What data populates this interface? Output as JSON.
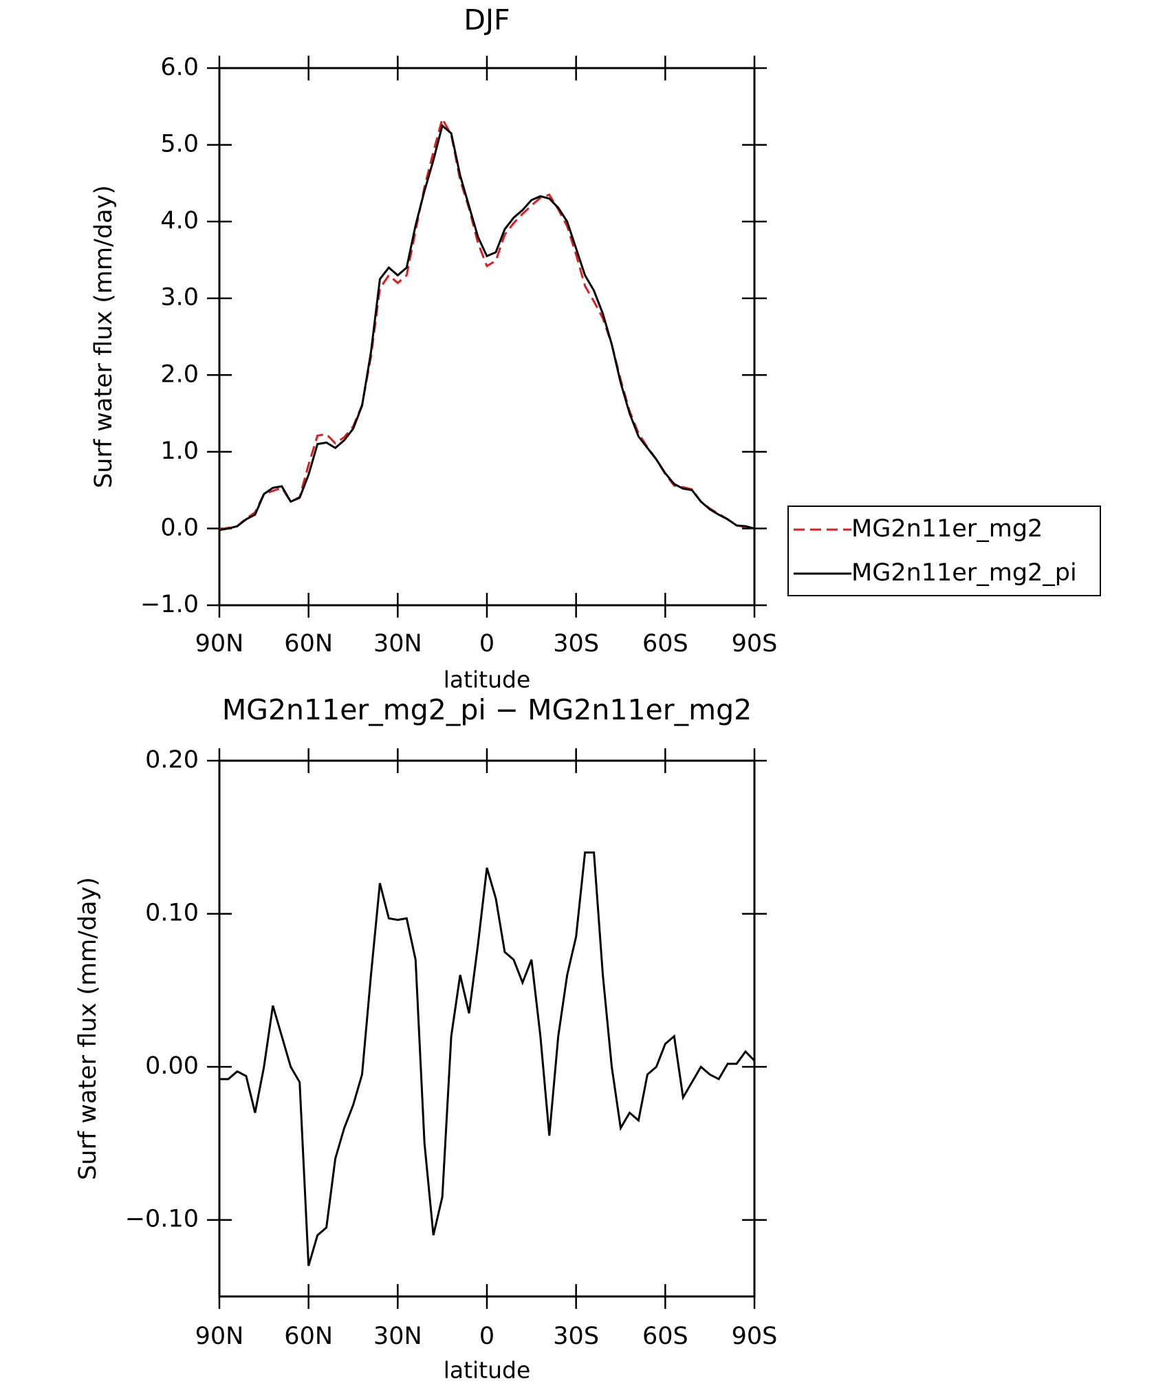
{
  "chart_data": [
    {
      "type": "line",
      "title": "DJF",
      "y_label": "Surf water flux (mm/day)",
      "x_label": "latitude",
      "x": [
        90,
        87,
        84,
        81,
        78,
        75,
        72,
        69,
        66,
        63,
        60,
        57,
        54,
        51,
        48,
        45,
        42,
        39,
        36,
        33,
        30,
        27,
        24,
        21,
        18,
        15,
        12,
        9,
        6,
        3,
        0,
        -3,
        -6,
        -9,
        -12,
        -15,
        -18,
        -21,
        -24,
        -27,
        -30,
        -33,
        -36,
        -39,
        -42,
        -45,
        -48,
        -51,
        -54,
        -57,
        -60,
        -63,
        -66,
        -69,
        -72,
        -75,
        -78,
        -81,
        -84,
        -87,
        -90
      ],
      "series": [
        {
          "name": "MG2n11er_mg2",
          "color": "#e41a1c",
          "dash": "dashed",
          "values": [
            -0.01,
            0.01,
            0.03,
            0.13,
            0.21,
            0.45,
            0.49,
            0.53,
            0.35,
            0.41,
            0.83,
            1.21,
            1.23,
            1.11,
            1.19,
            1.33,
            1.61,
            2.24,
            3.13,
            3.3,
            3.2,
            3.3,
            3.88,
            4.45,
            4.91,
            5.34,
            5.13,
            4.54,
            4.17,
            3.72,
            3.42,
            3.49,
            3.83,
            3.98,
            4.1,
            4.21,
            4.31,
            4.35,
            4.16,
            3.94,
            3.57,
            3.16,
            2.96,
            2.74,
            2.4,
            1.94,
            1.53,
            1.24,
            1.06,
            0.9,
            0.71,
            0.56,
            0.54,
            0.51,
            0.35,
            0.26,
            0.19,
            0.12,
            0.04,
            0.02,
            0.0
          ]
        },
        {
          "name": "MG2n11er_mg2_pi",
          "color": "#000000",
          "dash": "solid",
          "values": [
            -0.02,
            0.0,
            0.03,
            0.12,
            0.18,
            0.45,
            0.53,
            0.55,
            0.35,
            0.4,
            0.7,
            1.1,
            1.12,
            1.05,
            1.15,
            1.3,
            1.6,
            2.3,
            3.25,
            3.4,
            3.3,
            3.4,
            3.95,
            4.4,
            4.8,
            5.25,
            5.15,
            4.6,
            4.2,
            3.8,
            3.55,
            3.6,
            3.9,
            4.05,
            4.15,
            4.28,
            4.33,
            4.3,
            4.18,
            4.0,
            3.65,
            3.3,
            3.1,
            2.8,
            2.4,
            1.9,
            1.5,
            1.2,
            1.05,
            0.9,
            0.72,
            0.58,
            0.52,
            0.5,
            0.35,
            0.25,
            0.18,
            0.12,
            0.04,
            0.03,
            0.0
          ]
        }
      ],
      "xlim": [
        90,
        -90
      ],
      "xticks": [
        {
          "value": 90,
          "label": "90N"
        },
        {
          "value": 60,
          "label": "60N"
        },
        {
          "value": 30,
          "label": "30N"
        },
        0,
        {
          "value": -30,
          "label": "30S"
        },
        {
          "value": -60,
          "label": "60S"
        },
        {
          "value": -90,
          "label": "90S"
        }
      ],
      "ylim": [
        -1,
        6
      ],
      "yticks": [
        {
          "value": -1,
          "label": "−1.0"
        },
        {
          "value": 0,
          "label": "0.0"
        },
        {
          "value": 1,
          "label": "1.0"
        },
        {
          "value": 2,
          "label": "2.0"
        },
        {
          "value": 3,
          "label": "3.0"
        },
        {
          "value": 4,
          "label": "4.0"
        },
        {
          "value": 5,
          "label": "5.0"
        },
        {
          "value": 6,
          "label": "6.0"
        }
      ],
      "legend": "outside-right"
    },
    {
      "type": "line",
      "title": "MG2n11er_mg2_pi − MG2n11er_mg2",
      "y_label": "Surf water flux (mm/day)",
      "x_label": "latitude",
      "x": [
        90,
        87,
        84,
        81,
        78,
        75,
        72,
        69,
        66,
        63,
        60,
        57,
        54,
        51,
        48,
        45,
        42,
        39,
        36,
        33,
        30,
        27,
        24,
        21,
        18,
        15,
        12,
        9,
        6,
        3,
        0,
        -3,
        -6,
        -9,
        -12,
        -15,
        -18,
        -21,
        -24,
        -27,
        -30,
        -33,
        -36,
        -39,
        -42,
        -45,
        -48,
        -51,
        -54,
        -57,
        -60,
        -63,
        -66,
        -69,
        -72,
        -75,
        -78,
        -81,
        -84,
        -87,
        -90
      ],
      "series": [
        {
          "color": "#000000",
          "dash": "solid",
          "values": [
            -0.008,
            -0.008,
            -0.003,
            -0.006,
            -0.03,
            0.0,
            0.04,
            0.02,
            0.0,
            -0.01,
            -0.13,
            -0.11,
            -0.105,
            -0.06,
            -0.04,
            -0.025,
            -0.005,
            0.06,
            0.12,
            0.097,
            0.096,
            0.097,
            0.07,
            -0.05,
            -0.11,
            -0.085,
            0.02,
            0.06,
            0.035,
            0.08,
            0.13,
            0.11,
            0.075,
            0.07,
            0.055,
            0.07,
            0.02,
            -0.045,
            0.02,
            0.06,
            0.085,
            0.14,
            0.14,
            0.06,
            0.0,
            -0.04,
            -0.03,
            -0.035,
            -0.005,
            0.0,
            0.015,
            0.02,
            -0.02,
            -0.01,
            0.0,
            -0.005,
            -0.008,
            0.002,
            0.002,
            0.01,
            0.004
          ]
        }
      ],
      "xlim": [
        90,
        -90
      ],
      "xticks": [
        {
          "value": 90,
          "label": "90N"
        },
        {
          "value": 60,
          "label": "60N"
        },
        {
          "value": 30,
          "label": "30N"
        },
        0,
        {
          "value": -30,
          "label": "30S"
        },
        {
          "value": -60,
          "label": "60S"
        },
        {
          "value": -90,
          "label": "90S"
        }
      ],
      "ylim": [
        -0.15,
        0.2
      ],
      "yticks": [
        {
          "value": -0.1,
          "label": "−0.10"
        },
        {
          "value": 0,
          "label": "0.00"
        },
        {
          "value": 0.1,
          "label": "0.10"
        },
        {
          "value": 0.2,
          "label": "0.20"
        }
      ]
    }
  ]
}
